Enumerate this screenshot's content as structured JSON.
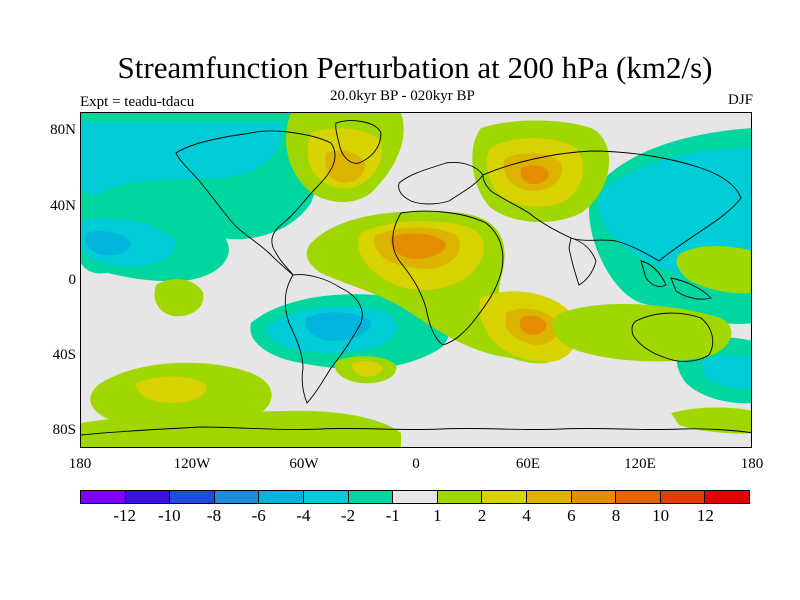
{
  "header": {
    "title": "Streamfunction Perturbation at 200 hPa (km2/s)",
    "subtitle": "20.0kyr BP - 020kyr BP",
    "experiment": "Expt = teadu-tdacu",
    "season": "DJF"
  },
  "axes": {
    "y_ticks": [
      "80N",
      "40N",
      "0",
      "40S",
      "80S"
    ],
    "x_ticks": [
      "180",
      "120W",
      "60W",
      "0",
      "60E",
      "120E",
      "180"
    ]
  },
  "colorbar": {
    "colors": [
      "#7f00ff",
      "#3c10e0",
      "#1e4cdc",
      "#1e8cdc",
      "#00b4dc",
      "#00cdd7",
      "#00d7a0",
      "#e6e6e6",
      "#a0d700",
      "#d7d200",
      "#dcb400",
      "#e68c00",
      "#e66400",
      "#e63c00",
      "#e60000"
    ],
    "labels": [
      "-12",
      "-10",
      "-8",
      "-6",
      "-4",
      "-2",
      "-1",
      "1",
      "2",
      "4",
      "6",
      "8",
      "10",
      "12"
    ]
  },
  "chart_data": {
    "type": "heatmap",
    "title": "Streamfunction Perturbation at 200 hPa (km2/s)",
    "subtitle": "20.0kyr BP - 020kyr BP",
    "xlim": [
      -180,
      180
    ],
    "ylim": [
      -90,
      90
    ],
    "contour_levels": [
      -12,
      -10,
      -8,
      -6,
      -4,
      -2,
      -1,
      1,
      2,
      4,
      6,
      8,
      10,
      12
    ],
    "features": [
      {
        "name": "North Africa high",
        "lon": 0,
        "lat": 20,
        "peak": 8
      },
      {
        "name": "Siberia high",
        "lon": 62,
        "lat": 58,
        "peak": 6
      },
      {
        "name": "North Atlantic high",
        "lon": -40,
        "lat": 58,
        "peak": 4
      },
      {
        "name": "Southern Africa high",
        "lon": 65,
        "lat": -22,
        "peak": 6
      },
      {
        "name": "Central Pacific low",
        "lon": -165,
        "lat": 20,
        "peak": -6
      },
      {
        "name": "South America low",
        "lon": -45,
        "lat": -25,
        "peak": -6
      },
      {
        "name": "East Asia low",
        "lon": 145,
        "lat": 40,
        "peak": -4
      },
      {
        "name": "Arctic low",
        "lon": -130,
        "lat": 75,
        "peak": -4
      }
    ]
  }
}
